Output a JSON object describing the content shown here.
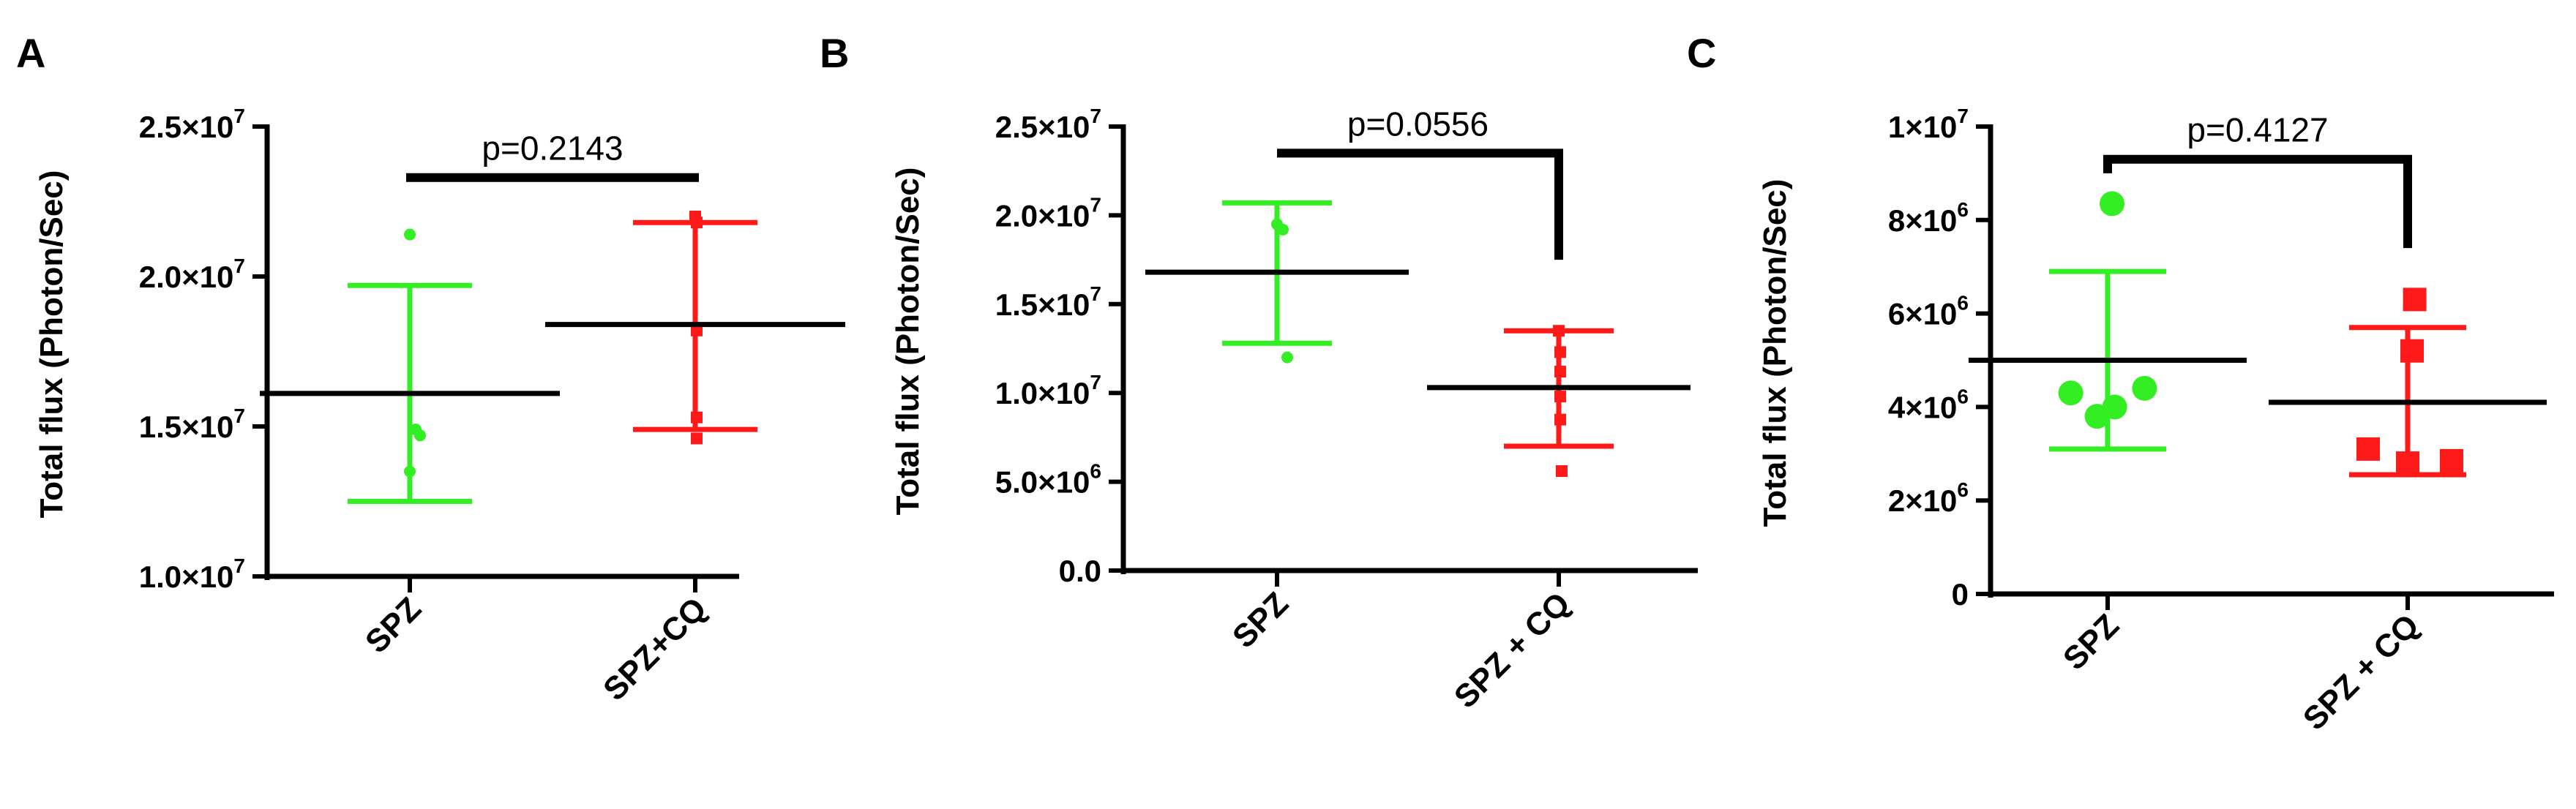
{
  "colors": {
    "SPZ": "#33ee22",
    "SPZ_CQ": "#ff1a1a",
    "axis": "#000000"
  },
  "chart_data": [
    {
      "type": "scatter",
      "panel": "A",
      "ylabel": "Total flux (Photon/Sec)",
      "categories": [
        "SPZ",
        "SPZ+CQ"
      ],
      "ylim": [
        10000000,
        25000000
      ],
      "yticks": [
        {
          "value": 10000000,
          "mantissa": "1.0×10",
          "exp": "7"
        },
        {
          "value": 15000000,
          "mantissa": "1.5×10",
          "exp": "7"
        },
        {
          "value": 20000000,
          "mantissa": "2.0×10",
          "exp": "7"
        },
        {
          "value": 25000000,
          "mantissa": "2.5×10",
          "exp": "7"
        }
      ],
      "marker": "circle-small",
      "series": [
        {
          "category": "SPZ",
          "color": "#33ee22",
          "points": [
            21400000,
            14900000,
            14700000,
            13500000
          ],
          "mean": 16100000,
          "sd_upper": 19700000,
          "sd_lower": 12500000
        },
        {
          "category": "SPZ+CQ",
          "color": "#ff1a1a",
          "points": [
            22000000,
            21800000,
            18200000,
            15300000,
            14600000
          ],
          "mean": 18400000,
          "sd_upper": 21800000,
          "sd_lower": 14900000
        }
      ],
      "pvalue": {
        "text": "p=0.2143",
        "y": 23300000,
        "style": "flat"
      }
    },
    {
      "type": "scatter",
      "panel": "B",
      "ylabel": "Total flux (Photon/Sec)",
      "categories": [
        "SPZ",
        "SPZ + CQ"
      ],
      "ylim": [
        0,
        25000000
      ],
      "yticks": [
        {
          "value": 0,
          "mantissa": "0.0",
          "exp": ""
        },
        {
          "value": 5000000,
          "mantissa": "5.0×10",
          "exp": "6"
        },
        {
          "value": 10000000,
          "mantissa": "1.0×10",
          "exp": "7"
        },
        {
          "value": 15000000,
          "mantissa": "1.5×10",
          "exp": "7"
        },
        {
          "value": 20000000,
          "mantissa": "2.0×10",
          "exp": "7"
        },
        {
          "value": 25000000,
          "mantissa": "2.5×10",
          "exp": "7"
        }
      ],
      "marker": "circle-small",
      "series": [
        {
          "category": "SPZ",
          "color": "#33ee22",
          "points": [
            19500000,
            19200000,
            12000000
          ],
          "mean": 16800000,
          "sd_upper": 20700000,
          "sd_lower": 12800000
        },
        {
          "category": "SPZ + CQ",
          "color": "#ff1a1a",
          "points": [
            13500000,
            12300000,
            11200000,
            9800000,
            8500000,
            5600000
          ],
          "mean": 10300000,
          "sd_upper": 13500000,
          "sd_lower": 7000000
        },
        {
          "category": "SPZ + CQ",
          "color": "#ff1a1a",
          "points": [],
          "mean": null,
          "sd_upper": null,
          "sd_lower": null
        }
      ],
      "pvalue": {
        "text": "p=0.0556",
        "y": 23500000,
        "style": "bracket",
        "left_bottom": 23500000,
        "right_bottom": 17500000
      }
    },
    {
      "type": "scatter",
      "panel": "C",
      "ylabel": "Total flux (Photon/Sec)",
      "categories": [
        "SPZ",
        "SPZ + CQ"
      ],
      "ylim": [
        0,
        10000000
      ],
      "yticks": [
        {
          "value": 0,
          "mantissa": "0",
          "exp": ""
        },
        {
          "value": 2000000,
          "mantissa": "2×10",
          "exp": "6"
        },
        {
          "value": 4000000,
          "mantissa": "4×10",
          "exp": "6"
        },
        {
          "value": 6000000,
          "mantissa": "6×10",
          "exp": "6"
        },
        {
          "value": 8000000,
          "mantissa": "8×10",
          "exp": "6"
        },
        {
          "value": 10000000,
          "mantissa": "1×10",
          "exp": "7"
        }
      ],
      "marker": "large",
      "series": [
        {
          "category": "SPZ",
          "color": "#33ee22",
          "shape": "circle",
          "points": [
            8350000,
            4400000,
            4300000,
            4000000,
            3800000
          ],
          "x_offsets": [
            0.05,
            0.42,
            -0.42,
            0.08,
            -0.12
          ],
          "mean": 5000000,
          "sd_upper": 6900000,
          "sd_lower": 3100000
        },
        {
          "category": "SPZ + CQ",
          "color": "#ff1a1a",
          "shape": "square",
          "points": [
            6300000,
            5200000,
            3100000,
            2850000,
            2800000
          ],
          "x_offsets": [
            0.08,
            0.05,
            -0.45,
            0.5,
            0.0
          ],
          "mean": 4100000,
          "sd_upper": 5700000,
          "sd_lower": 2550000
        }
      ],
      "pvalue": {
        "text": "p=0.4127",
        "y": 9300000,
        "style": "bracket",
        "left_bottom": 9000000,
        "right_bottom": 7400000
      }
    }
  ]
}
